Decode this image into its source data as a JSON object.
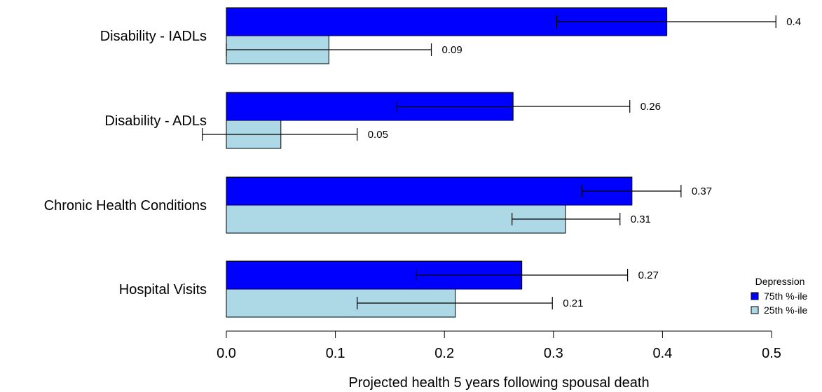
{
  "chart_data": {
    "type": "bar",
    "orientation": "horizontal",
    "categories": [
      "Disability - IADLs",
      "Disability - ADLs",
      "Chronic Health Conditions",
      "Hospital Visits"
    ],
    "series": [
      {
        "name": "75th %-ile",
        "color": "#0000ff",
        "values": [
          0.404,
          0.263,
          0.372,
          0.271
        ],
        "labels": [
          "0.4",
          "0.26",
          "0.37",
          "0.27"
        ],
        "error_low": [
          0.303,
          0.156,
          0.326,
          0.174
        ],
        "error_high": [
          0.504,
          0.37,
          0.417,
          0.368
        ]
      },
      {
        "name": "25th %-ile",
        "color": "#add8e6",
        "values": [
          0.094,
          0.05,
          0.311,
          0.21
        ],
        "labels": [
          "0.09",
          "0.05",
          "0.31",
          "0.21"
        ],
        "error_low": [
          0.0,
          -0.022,
          0.262,
          0.12
        ],
        "error_high": [
          0.188,
          0.12,
          0.361,
          0.299
        ]
      }
    ],
    "xlabel": "Projected health 5 years following spousal death",
    "ylabel": "",
    "xlim": [
      0,
      0.5
    ],
    "xticks": [
      0,
      0.1,
      0.2,
      0.3,
      0.4,
      0.5
    ],
    "xtick_labels": [
      "0.0",
      "0.1",
      "0.2",
      "0.3",
      "0.4",
      "0.5"
    ],
    "legend": {
      "title": "Depression",
      "position": "bottom-right",
      "entries": [
        "75th %-ile",
        "25th %-ile"
      ]
    },
    "grid": false
  }
}
